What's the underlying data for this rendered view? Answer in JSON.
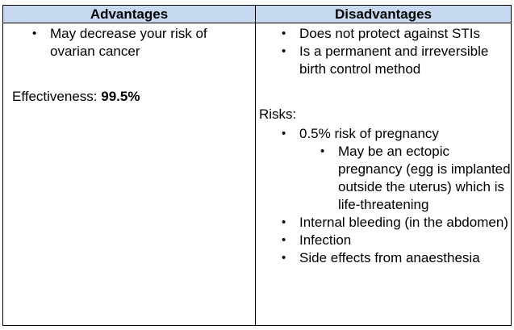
{
  "table": {
    "headers": [
      "Advantages",
      "Disadvantages"
    ],
    "advantages": {
      "items": [
        "May decrease your risk of ovarian cancer"
      ],
      "effectiveness_label": "Effectiveness:",
      "effectiveness_value": "99.5%"
    },
    "disadvantages": {
      "items": [
        "Does not protect against STIs",
        "Is a permanent and irreversible birth control method"
      ],
      "risks_label": "Risks:",
      "risks": {
        "pregnancy": "0.5% risk of pregnancy",
        "pregnancy_sub": "May be an ectopic pregnancy (egg is implanted outside the uterus) which is life-threatening",
        "others": [
          "Internal bleeding (in the abdomen)",
          "Infection",
          "Side effects from anaesthesia"
        ]
      }
    }
  }
}
